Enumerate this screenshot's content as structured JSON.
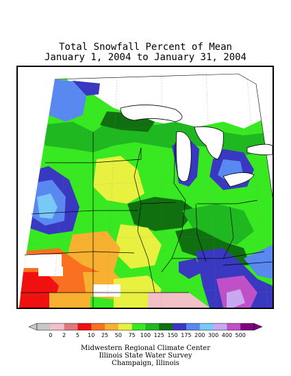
{
  "title": {
    "line1": "Total Snowfall Percent of Mean",
    "line2": "January 1, 2004 to January 31, 2004"
  },
  "legend": {
    "labels": [
      "0",
      "2",
      "5",
      "10",
      "25",
      "50",
      "75",
      "100",
      "125",
      "150",
      "175",
      "200",
      "300",
      "400",
      "500"
    ],
    "colors": [
      "#c8c8c8",
      "#f4c0c8",
      "#e07880",
      "#f01010",
      "#f87020",
      "#f8b030",
      "#e8f040",
      "#38e820",
      "#20b820",
      "#107010",
      "#3838c0",
      "#5888f0",
      "#78c8f8",
      "#c8a8f0",
      "#c050c8",
      "#800080"
    ]
  },
  "footer": {
    "line1": "Midwestern Regional Climate Center",
    "line2": "Illinois State Water Survey",
    "line3": "Champaign, Illinois"
  }
}
